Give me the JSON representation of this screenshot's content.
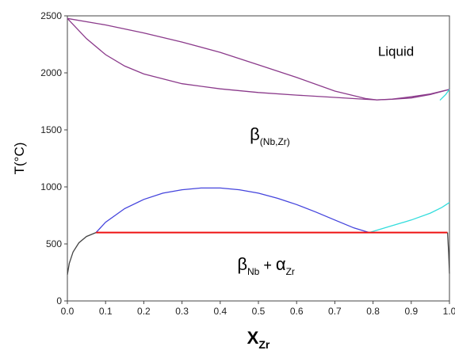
{
  "chart_data": {
    "type": "line",
    "title": "",
    "xlabel": {
      "main": "X",
      "sub": "Zr"
    },
    "ylabel": "T(°C)",
    "xlim": [
      0.0,
      1.0
    ],
    "ylim": [
      0,
      2500
    ],
    "grid": false,
    "x_ticks": [
      "0.0",
      "0.1",
      "0.2",
      "0.3",
      "0.4",
      "0.5",
      "0.6",
      "0.7",
      "0.8",
      "0.9",
      "1.0"
    ],
    "y_ticks": [
      "0",
      "500",
      "1000",
      "1500",
      "2000",
      "2500"
    ],
    "annotations": [
      {
        "id": "liquid",
        "main": "Liquid",
        "sub": "",
        "x": 0.86,
        "y": 2150
      },
      {
        "id": "beta",
        "main": "β",
        "sub": "(Nb,Zr)",
        "x": 0.53,
        "y": 1410
      },
      {
        "id": "twophase",
        "main": "β",
        "sub": "Nb",
        "plus": " + ",
        "main2": "α",
        "sub2": "Zr",
        "x": 0.52,
        "y": 270
      }
    ],
    "series": [
      {
        "id": "liquidus",
        "color": "#8b3a8b",
        "x": [
          0.0,
          0.1,
          0.2,
          0.3,
          0.4,
          0.5,
          0.6,
          0.7,
          0.78,
          0.81,
          0.85,
          0.9,
          0.95,
          1.0
        ],
        "y": [
          2477,
          2420,
          2350,
          2270,
          2180,
          2070,
          1960,
          1840,
          1775,
          1763,
          1770,
          1790,
          1815,
          1855
        ]
      },
      {
        "id": "solidus",
        "color": "#8b3a8b",
        "x": [
          0.0,
          0.05,
          0.1,
          0.15,
          0.2,
          0.3,
          0.4,
          0.5,
          0.6,
          0.7,
          0.78,
          0.81,
          0.85,
          0.9,
          0.95,
          1.0
        ],
        "y": [
          2477,
          2300,
          2160,
          2060,
          1990,
          1905,
          1860,
          1828,
          1805,
          1785,
          1768,
          1763,
          1768,
          1780,
          1810,
          1855
        ]
      },
      {
        "id": "miscibility-gap",
        "color": "#4444dd",
        "x": [
          0.075,
          0.1,
          0.15,
          0.2,
          0.25,
          0.3,
          0.35,
          0.4,
          0.45,
          0.5,
          0.55,
          0.6,
          0.65,
          0.7,
          0.75,
          0.79
        ],
        "y": [
          600,
          690,
          810,
          890,
          945,
          975,
          990,
          990,
          975,
          945,
          900,
          845,
          780,
          710,
          640,
          600
        ]
      },
      {
        "id": "beta-transus",
        "color": "#33dddd",
        "x": [
          0.79,
          0.84,
          0.9,
          0.95,
          0.98,
          1.0
        ],
        "y": [
          600,
          650,
          710,
          770,
          820,
          863
        ]
      },
      {
        "id": "eutectoid",
        "color": "#ee1111",
        "x": [
          0.075,
          0.995
        ],
        "y": [
          600,
          600
        ]
      },
      {
        "id": "nb-solvus",
        "color": "#444444",
        "x": [
          0.0,
          0.005,
          0.015,
          0.03,
          0.05,
          0.075
        ],
        "y": [
          230,
          330,
          430,
          510,
          565,
          600
        ]
      },
      {
        "id": "zr-solvus",
        "color": "#444444",
        "x": [
          0.995,
          0.998,
          1.0
        ],
        "y": [
          600,
          420,
          240
        ]
      },
      {
        "id": "zr-liquidus-tip",
        "color": "#33dddd",
        "x": [
          0.975,
          0.99,
          1.0
        ],
        "y": [
          1760,
          1810,
          1855
        ]
      }
    ]
  }
}
